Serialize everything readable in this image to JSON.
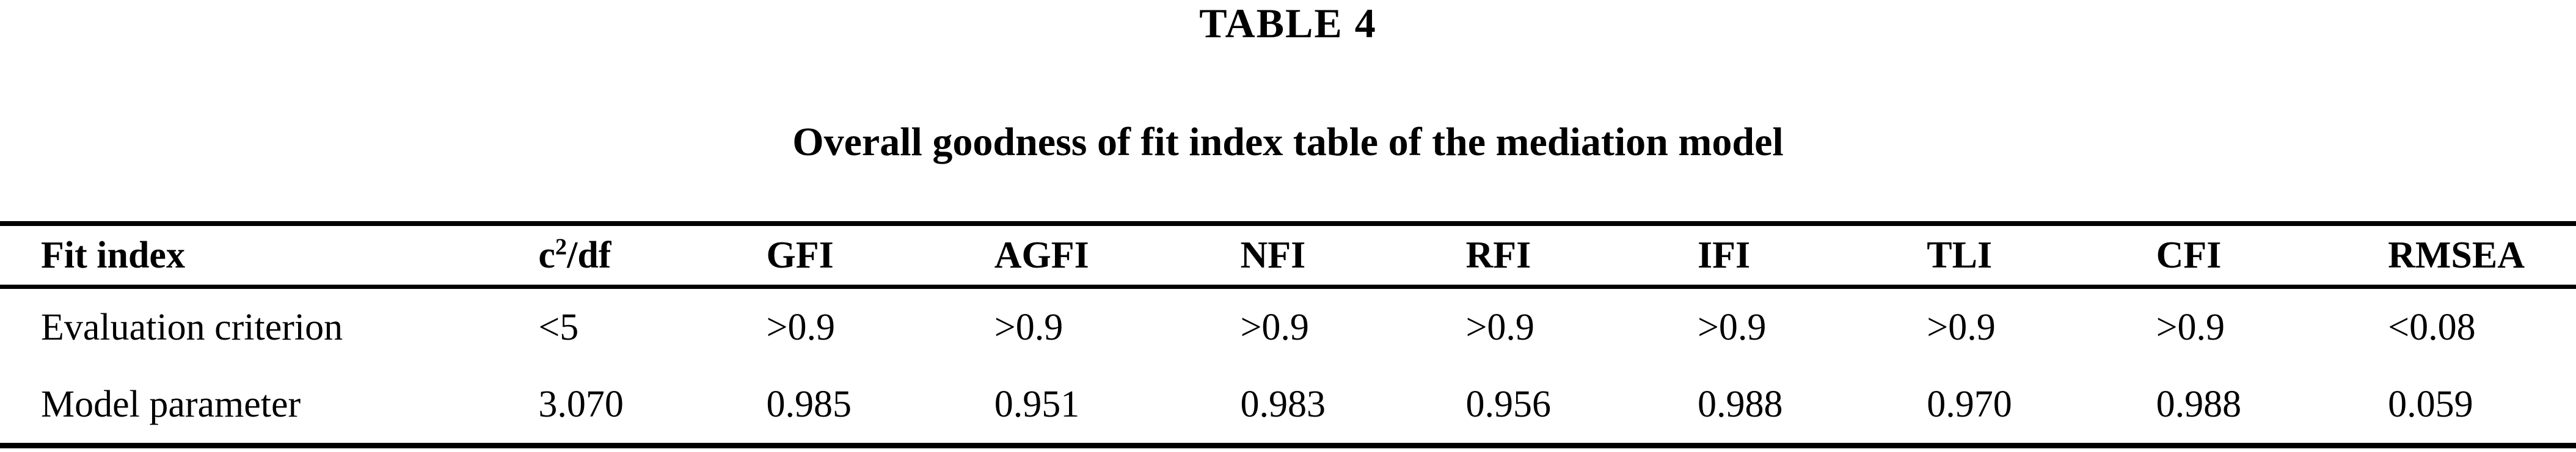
{
  "title": "TABLE 4",
  "caption": "Overall goodness of fit index table of the mediation model",
  "table": {
    "header": {
      "col0": "Fit index",
      "chi": {
        "base": "c",
        "sup": "2",
        "rest": "/df"
      },
      "cols": [
        "GFI",
        "AGFI",
        "NFI",
        "RFI",
        "IFI",
        "TLI",
        "CFI",
        "RMSEA"
      ]
    },
    "rows": [
      {
        "label": "Evaluation criterion",
        "values": [
          "<5",
          ">0.9",
          ">0.9",
          ">0.9",
          ">0.9",
          ">0.9",
          ">0.9",
          ">0.9",
          "<0.08"
        ]
      },
      {
        "label": "Model parameter",
        "values": [
          "3.070",
          "0.985",
          "0.951",
          "0.983",
          "0.956",
          "0.988",
          "0.970",
          "0.988",
          "0.059"
        ]
      }
    ]
  },
  "chart_data": {
    "type": "table",
    "title": "TABLE 4",
    "subtitle": "Overall goodness of fit index table of the mediation model",
    "columns": [
      "Fit index",
      "c2/df",
      "GFI",
      "AGFI",
      "NFI",
      "RFI",
      "IFI",
      "TLI",
      "CFI",
      "RMSEA"
    ],
    "rows": [
      [
        "Evaluation criterion",
        "<5",
        ">0.9",
        ">0.9",
        ">0.9",
        ">0.9",
        ">0.9",
        ">0.9",
        ">0.9",
        "<0.08"
      ],
      [
        "Model parameter",
        "3.070",
        "0.985",
        "0.951",
        "0.983",
        "0.956",
        "0.988",
        "0.970",
        "0.988",
        "0.059"
      ]
    ]
  }
}
